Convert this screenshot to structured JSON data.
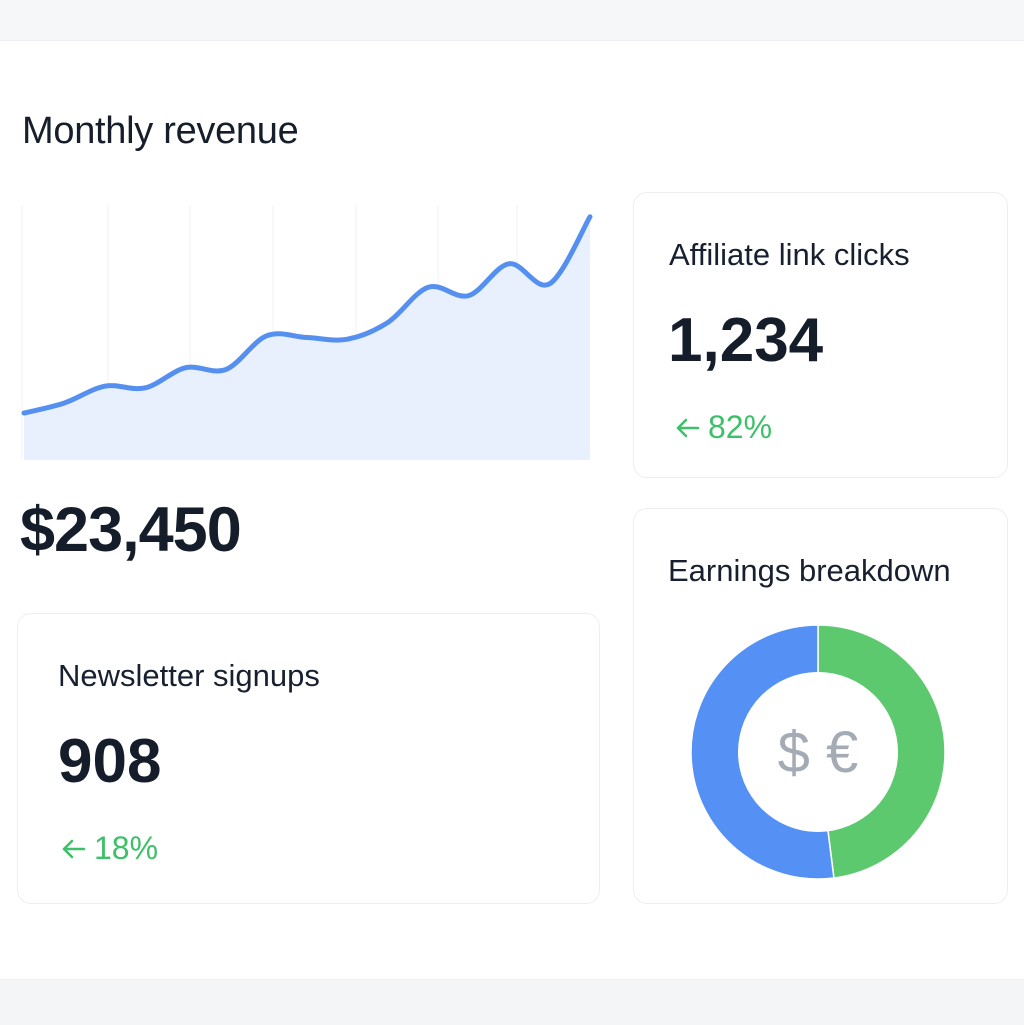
{
  "revenue": {
    "title": "Monthly revenue",
    "value": "$23,450"
  },
  "chart_data": {
    "type": "area",
    "title": "Monthly revenue",
    "x": [
      0,
      1,
      2,
      3,
      4,
      5,
      6,
      7,
      8,
      9,
      10,
      11,
      12,
      13,
      14
    ],
    "series": [
      {
        "values": [
          3,
          9,
          19,
          18,
          30,
          29,
          49,
          48,
          47,
          57,
          78,
          73,
          92,
          80,
          120
        ]
      }
    ],
    "ylim": [
      -25,
      127
    ],
    "grid": "vertical",
    "colors": {
      "line": "#5590f0",
      "fill": "#e9f0fd"
    }
  },
  "affiliate": {
    "title": "Affiliate link clicks",
    "value": "1,234",
    "delta": "82%",
    "delta_icon": "arrow-left-icon"
  },
  "newsletter": {
    "title": "Newsletter signups",
    "value": "908",
    "delta": "18%",
    "delta_icon": "arrow-left-icon"
  },
  "earnings": {
    "title": "Earnings breakdown",
    "center_label": "$ €",
    "slices": [
      {
        "value": 48,
        "color": "#5cc96e"
      },
      {
        "value": 52,
        "color": "#5591f5"
      }
    ]
  },
  "colors": {
    "positive": "#3ec06a",
    "text": "#151c2a",
    "line": "#5590f0"
  }
}
